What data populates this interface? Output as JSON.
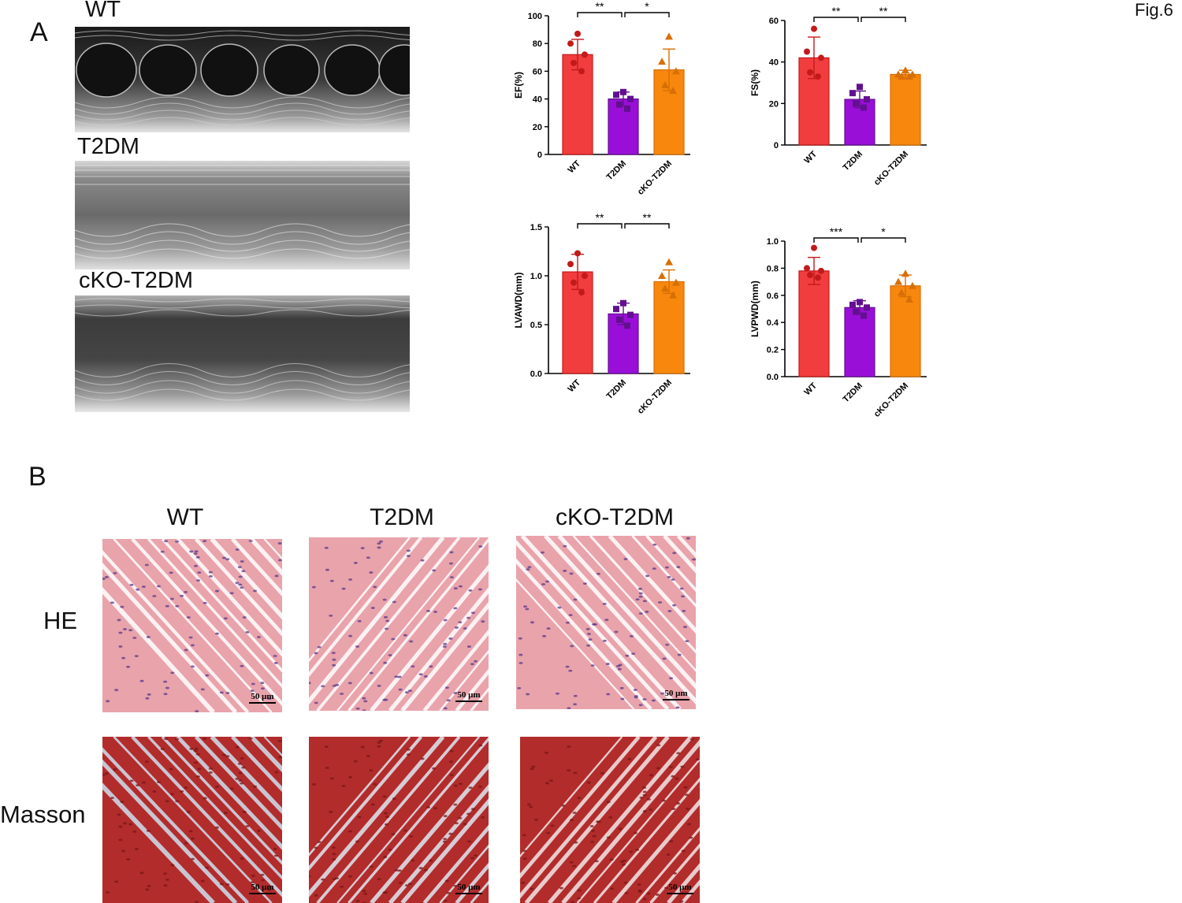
{
  "figure_label": "Fig.6",
  "panel_a": {
    "letter": "A",
    "echo_panels": [
      {
        "label": "WT"
      },
      {
        "label": "T2DM"
      },
      {
        "label": "cKO-T2DM"
      }
    ]
  },
  "panel_b": {
    "letter": "B",
    "columns": [
      "WT",
      "T2DM",
      "cKO-T2DM"
    ],
    "rows": [
      "HE",
      "Masson"
    ],
    "scale_bar": "50 μm",
    "he_color": "#e9a3ab",
    "masson_color": "#b22c2c"
  },
  "colors": {
    "WT": "#f23d3f",
    "T2DM": "#9a0fd8",
    "cKO-T2DM": "#f7880d",
    "dots_WT": "#c21a1a",
    "dots_T2DM": "#62108f",
    "dots_cKO": "#d86f05"
  },
  "chart_data": [
    {
      "type": "bar",
      "categories": [
        "WT",
        "T2DM",
        "cKO-T2DM"
      ],
      "values": [
        72,
        40,
        61
      ],
      "errors": [
        11,
        5,
        15
      ],
      "points": [
        [
          87,
          80,
          72,
          66,
          60
        ],
        [
          45,
          43,
          40,
          36,
          33
        ],
        [
          85,
          67,
          60,
          50,
          46
        ]
      ],
      "ylabel": "EF(%)",
      "ylim": [
        0,
        100
      ],
      "yticks": [
        0,
        20,
        40,
        60,
        80,
        100
      ],
      "significance": [
        {
          "from": 0,
          "to": 1,
          "label": "**"
        },
        {
          "from": 1,
          "to": 2,
          "label": "*"
        }
      ]
    },
    {
      "type": "bar",
      "categories": [
        "WT",
        "T2DM",
        "cKO-T2DM"
      ],
      "values": [
        42,
        22,
        34
      ],
      "errors": [
        10,
        4,
        2
      ],
      "points": [
        [
          56,
          45,
          42,
          35,
          33
        ],
        [
          28,
          25,
          22,
          20,
          18
        ],
        [
          36,
          34,
          34,
          33,
          33
        ]
      ],
      "ylabel": "FS(%)",
      "ylim": [
        0,
        60
      ],
      "yticks": [
        0,
        20,
        40,
        60
      ],
      "significance": [
        {
          "from": 0,
          "to": 1,
          "label": "**"
        },
        {
          "from": 1,
          "to": 2,
          "label": "**"
        }
      ]
    },
    {
      "type": "bar",
      "categories": [
        "WT",
        "T2DM",
        "cKO-T2DM"
      ],
      "values": [
        1.04,
        0.61,
        0.94
      ],
      "errors": [
        0.18,
        0.11,
        0.12
      ],
      "points": [
        [
          1.23,
          1.12,
          1.0,
          0.93,
          0.83
        ],
        [
          0.72,
          0.66,
          0.6,
          0.55,
          0.49
        ],
        [
          1.14,
          1.0,
          0.93,
          0.87,
          0.8
        ]
      ],
      "ylabel": "LVAWD(mm)",
      "ylim": [
        0,
        1.5
      ],
      "yticks": [
        0.0,
        0.5,
        1.0,
        1.5
      ],
      "significance": [
        {
          "from": 0,
          "to": 1,
          "label": "**"
        },
        {
          "from": 1,
          "to": 2,
          "label": "**"
        }
      ]
    },
    {
      "type": "bar",
      "categories": [
        "WT",
        "T2DM",
        "cKO-T2DM"
      ],
      "values": [
        0.78,
        0.51,
        0.67
      ],
      "errors": [
        0.1,
        0.05,
        0.08
      ],
      "points": [
        [
          0.95,
          0.8,
          0.78,
          0.75,
          0.73
        ],
        [
          0.55,
          0.53,
          0.51,
          0.48,
          0.45
        ],
        [
          0.76,
          0.7,
          0.67,
          0.62,
          0.57
        ]
      ],
      "ylabel": "LVPWD(mm)",
      "ylim": [
        0,
        1.0
      ],
      "yticks": [
        0.0,
        0.2,
        0.4,
        0.6,
        0.8,
        1.0
      ],
      "significance": [
        {
          "from": 0,
          "to": 1,
          "label": "***"
        },
        {
          "from": 1,
          "to": 2,
          "label": "*"
        }
      ]
    }
  ]
}
